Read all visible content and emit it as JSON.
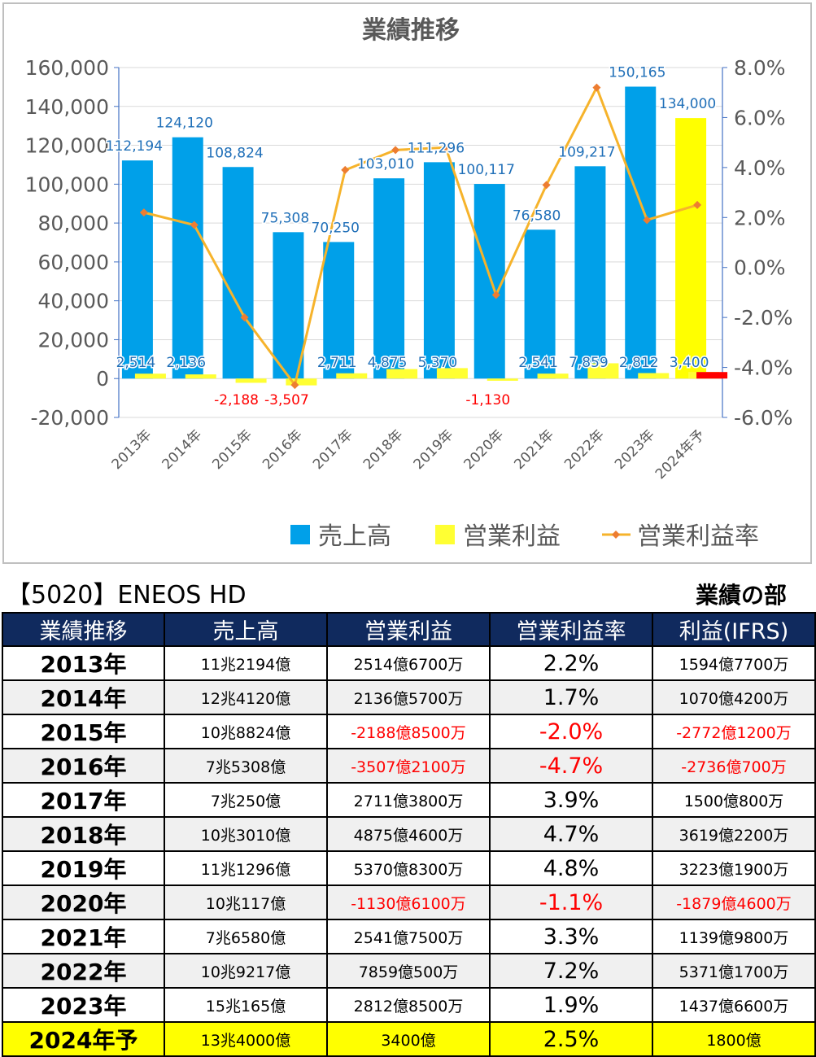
{
  "chart_data": {
    "type": "bar",
    "title": "業績推移",
    "categories": [
      "2013年",
      "2014年",
      "2015年",
      "2016年",
      "2017年",
      "2018年",
      "2019年",
      "2020年",
      "2021年",
      "2022年",
      "2023年",
      "2024年予"
    ],
    "series": [
      {
        "name": "売上高",
        "type": "bar",
        "axis": "left",
        "color": "#00a0e9",
        "values": [
          112194,
          124120,
          108824,
          75308,
          70250,
          103010,
          111296,
          100117,
          76580,
          109217,
          150165,
          134000
        ],
        "labels": [
          "112,194",
          "124,120",
          "108,824",
          "75,308",
          "70,250",
          "103,010",
          "111,296",
          "100,117",
          "76,580",
          "109,217",
          "150,165",
          "134,000"
        ]
      },
      {
        "name": "営業利益",
        "type": "bar",
        "axis": "left",
        "color": "#ffff33",
        "values": [
          2514,
          2136,
          -2188,
          -3507,
          2711,
          4875,
          5370,
          -1130,
          2541,
          7859,
          2812,
          3400
        ],
        "labels": [
          "2,514",
          "2,136",
          "-2,188",
          "-3,507",
          "2,711",
          "4,875",
          "5,370",
          "-1,130",
          "2,541",
          "7,859",
          "2,812",
          "3,400"
        ]
      },
      {
        "name": "営業利益率",
        "type": "line",
        "axis": "right",
        "color": "#f6b32b",
        "values": [
          2.2,
          1.7,
          -2.0,
          -4.7,
          3.9,
          4.7,
          4.8,
          -1.1,
          3.3,
          7.2,
          1.9,
          2.5
        ]
      }
    ],
    "y_left": {
      "min": -20000,
      "max": 160000,
      "step": 20000,
      "ticks": [
        "-20,000",
        "0",
        "20,000",
        "40,000",
        "60,000",
        "80,000",
        "100,000",
        "120,000",
        "140,000",
        "160,000"
      ]
    },
    "y_right": {
      "min": -6.0,
      "max": 8.0,
      "step": 2.0,
      "ticks": [
        "-6.0%",
        "-4.0%",
        "-2.0%",
        "0.0%",
        "2.0%",
        "4.0%",
        "6.0%",
        "8.0%"
      ]
    },
    "legend": {
      "position": "bottom-right",
      "items": [
        "売上高",
        "営業利益",
        "営業利益率"
      ]
    },
    "grid": true,
    "colors": {
      "sales": "#00a0e9",
      "sales_forecast": "#ffff00",
      "op": "#ffff33",
      "op_forecast_mark": "#ff0000",
      "rate": "#f6b32b",
      "negative_label": "#ff0000",
      "value_label": "#1f6fb8"
    }
  },
  "header": {
    "company": "【5020】ENEOS HD",
    "section": "業績の部"
  },
  "table": {
    "columns": [
      "業績推移",
      "売上高",
      "営業利益",
      "営業利益率",
      "利益(IFRS)"
    ],
    "rows": [
      {
        "year": "2013年",
        "sales": "11兆2194億",
        "op": "2514億6700万",
        "rate": "2.2%",
        "profit": "1594億7700万",
        "neg": [
          false,
          false,
          false
        ]
      },
      {
        "year": "2014年",
        "sales": "12兆4120億",
        "op": "2136億5700万",
        "rate": "1.7%",
        "profit": "1070億4200万",
        "neg": [
          false,
          false,
          false
        ]
      },
      {
        "year": "2015年",
        "sales": "10兆8824億",
        "op": "-2188億8500万",
        "rate": "-2.0%",
        "profit": "-2772億1200万",
        "neg": [
          true,
          true,
          true
        ]
      },
      {
        "year": "2016年",
        "sales": "7兆5308億",
        "op": "-3507億2100万",
        "rate": "-4.7%",
        "profit": "-2736億700万",
        "neg": [
          true,
          true,
          true
        ]
      },
      {
        "year": "2017年",
        "sales": "7兆250億",
        "op": "2711億3800万",
        "rate": "3.9%",
        "profit": "1500億800万",
        "neg": [
          false,
          false,
          false
        ]
      },
      {
        "year": "2018年",
        "sales": "10兆3010億",
        "op": "4875億4600万",
        "rate": "4.7%",
        "profit": "3619億2200万",
        "neg": [
          false,
          false,
          false
        ]
      },
      {
        "year": "2019年",
        "sales": "11兆1296億",
        "op": "5370億8300万",
        "rate": "4.8%",
        "profit": "3223億1900万",
        "neg": [
          false,
          false,
          false
        ]
      },
      {
        "year": "2020年",
        "sales": "10兆117億",
        "op": "-1130億6100万",
        "rate": "-1.1%",
        "profit": "-1879億4600万",
        "neg": [
          true,
          true,
          true
        ]
      },
      {
        "year": "2021年",
        "sales": "7兆6580億",
        "op": "2541億7500万",
        "rate": "3.3%",
        "profit": "1139億9800万",
        "neg": [
          false,
          false,
          false
        ]
      },
      {
        "year": "2022年",
        "sales": "10兆9217億",
        "op": "7859億500万",
        "rate": "7.2%",
        "profit": "5371億1700万",
        "neg": [
          false,
          false,
          false
        ]
      },
      {
        "year": "2023年",
        "sales": "15兆165億",
        "op": "2812億8500万",
        "rate": "1.9%",
        "profit": "1437億6600万",
        "neg": [
          false,
          false,
          false
        ]
      },
      {
        "year": "2024年予",
        "sales": "13兆4000億",
        "op": "3400億",
        "rate": "2.5%",
        "profit": "1800億",
        "neg": [
          false,
          false,
          false
        ],
        "forecast": true
      }
    ]
  }
}
